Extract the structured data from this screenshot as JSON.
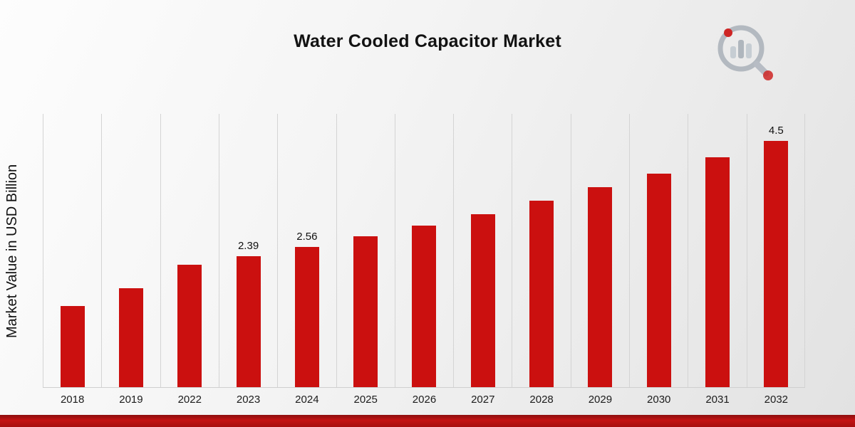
{
  "title": "Water Cooled Capacitor Market",
  "y_axis_label": "Market Value in USD Billion",
  "brand": {
    "logo": "magnifier-bar-chart-logo",
    "accent_color": "#cb100f"
  },
  "chart_data": {
    "type": "bar",
    "title": "Water Cooled Capacitor Market",
    "xlabel": "",
    "ylabel": "Market Value in USD Billion",
    "categories": [
      "2018",
      "2019",
      "2022",
      "2023",
      "2024",
      "2025",
      "2026",
      "2027",
      "2028",
      "2029",
      "2030",
      "2031",
      "2032"
    ],
    "values": [
      1.48,
      1.8,
      2.23,
      2.39,
      2.56,
      2.75,
      2.95,
      3.15,
      3.4,
      3.65,
      3.9,
      4.2,
      4.5
    ],
    "data_labels": [
      "",
      "",
      "",
      "2.39",
      "2.56",
      "",
      "",
      "",
      "",
      "",
      "",
      "",
      "4.5"
    ],
    "ylim": [
      0,
      5
    ],
    "bar_color": "#cb100f",
    "grid": "vertical",
    "legend": "none"
  }
}
